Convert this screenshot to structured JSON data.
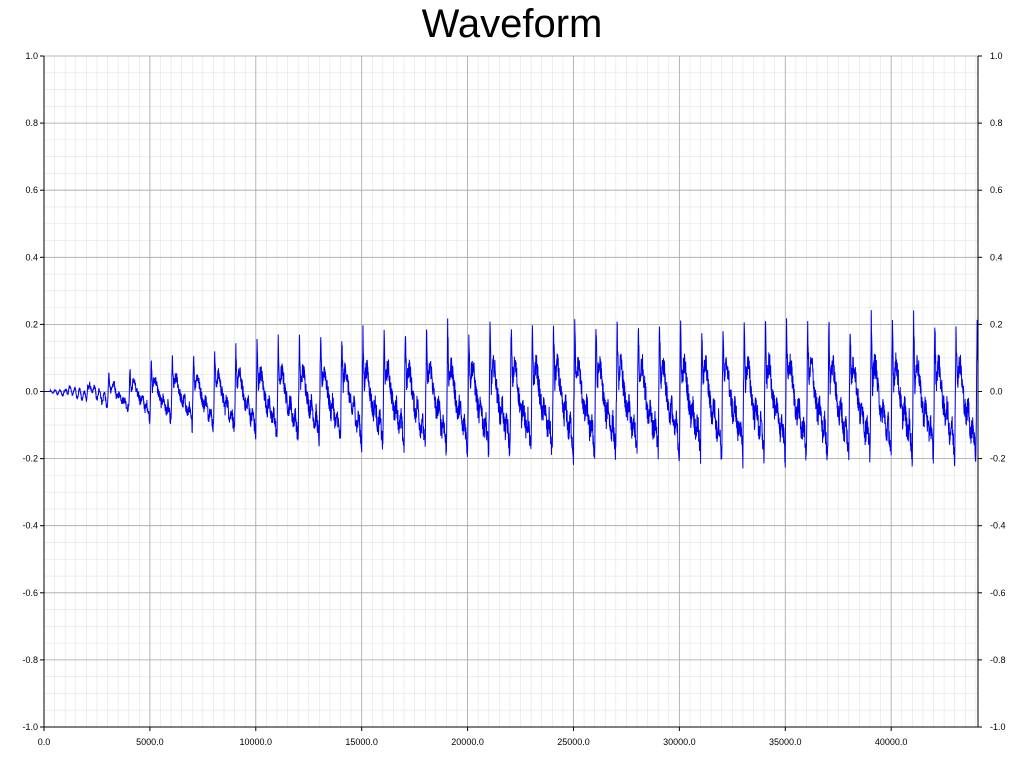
{
  "chart_data": {
    "type": "line",
    "title": "Waveform",
    "xlabel": "",
    "ylabel": "",
    "xlim": [
      0,
      44100
    ],
    "ylim": [
      -1.0,
      1.0
    ],
    "grid": true,
    "x_ticks": [
      0,
      5000,
      10000,
      15000,
      20000,
      25000,
      30000,
      35000,
      40000
    ],
    "x_tick_labels": [
      "0.0",
      "5000.0",
      "10000.0",
      "15000.0",
      "20000.0",
      "25000.0",
      "30000.0",
      "35000.0",
      "40000.0"
    ],
    "y_ticks": [
      1.0,
      0.8,
      0.6,
      0.4,
      0.2,
      0.0,
      -0.2,
      -0.4,
      -0.6,
      -0.8,
      -1.0
    ],
    "y_tick_labels": [
      "1.0",
      "0.8",
      "0.6",
      "0.4",
      "0.2",
      "0.0",
      "-0.2",
      "-0.4",
      "-0.6",
      "-0.8",
      "-1.0"
    ],
    "series": [
      {
        "name": "waveform",
        "color": "#0000ee",
        "period_samples": 1000,
        "onset_samples": 5000,
        "envelope": [
          {
            "x": 0,
            "amp": 0.0
          },
          {
            "x": 1500,
            "amp": 0.03
          },
          {
            "x": 5000,
            "amp": 0.09
          },
          {
            "x": 10000,
            "amp": 0.14
          },
          {
            "x": 15000,
            "amp": 0.17
          },
          {
            "x": 20000,
            "amp": 0.19
          },
          {
            "x": 25000,
            "amp": 0.2
          },
          {
            "x": 44100,
            "amp": 0.21
          }
        ]
      }
    ]
  },
  "colors": {
    "major_grid": "#a6a6a6",
    "minor_grid": "#e3e3e3",
    "axis": "#000000"
  }
}
